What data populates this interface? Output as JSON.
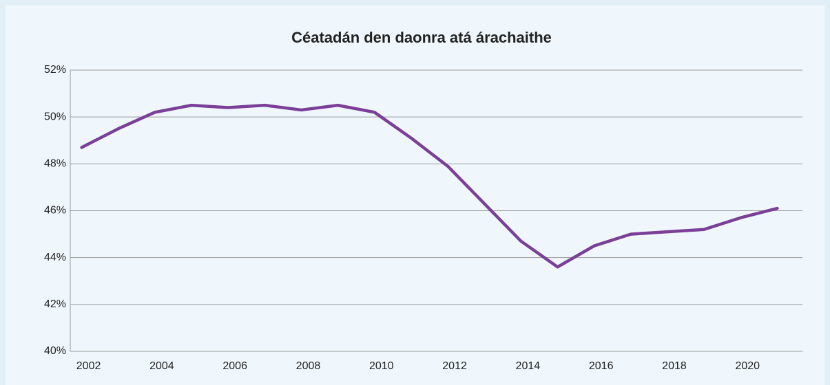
{
  "chart_data": {
    "type": "line",
    "title": "Céatadán den daonra atá árachaithe",
    "categories": [
      "2002",
      null,
      "2004",
      null,
      "2006",
      null,
      "2008",
      null,
      "2010",
      null,
      "2012",
      null,
      "2014",
      null,
      "2016",
      null,
      "2018",
      null,
      "2020",
      null
    ],
    "series": [
      {
        "color": "#7b3f98",
        "values": [
          48.7,
          49.5,
          50.2,
          50.5,
          50.4,
          50.5,
          50.3,
          50.5,
          50.2,
          49.1,
          47.9,
          46.3,
          44.7,
          43.6,
          44.5,
          45.0,
          45.1,
          45.2,
          45.7,
          46.1
        ]
      }
    ],
    "ylim": [
      40,
      52
    ],
    "yticks": [
      {
        "value": 40,
        "label": "40%"
      },
      {
        "value": 42,
        "label": "42%"
      },
      {
        "value": 44,
        "label": "44%"
      },
      {
        "value": 46,
        "label": "46%"
      },
      {
        "value": 48,
        "label": "48%"
      },
      {
        "value": 50,
        "label": "50%"
      },
      {
        "value": 52,
        "label": "52%"
      }
    ],
    "grid": true
  }
}
